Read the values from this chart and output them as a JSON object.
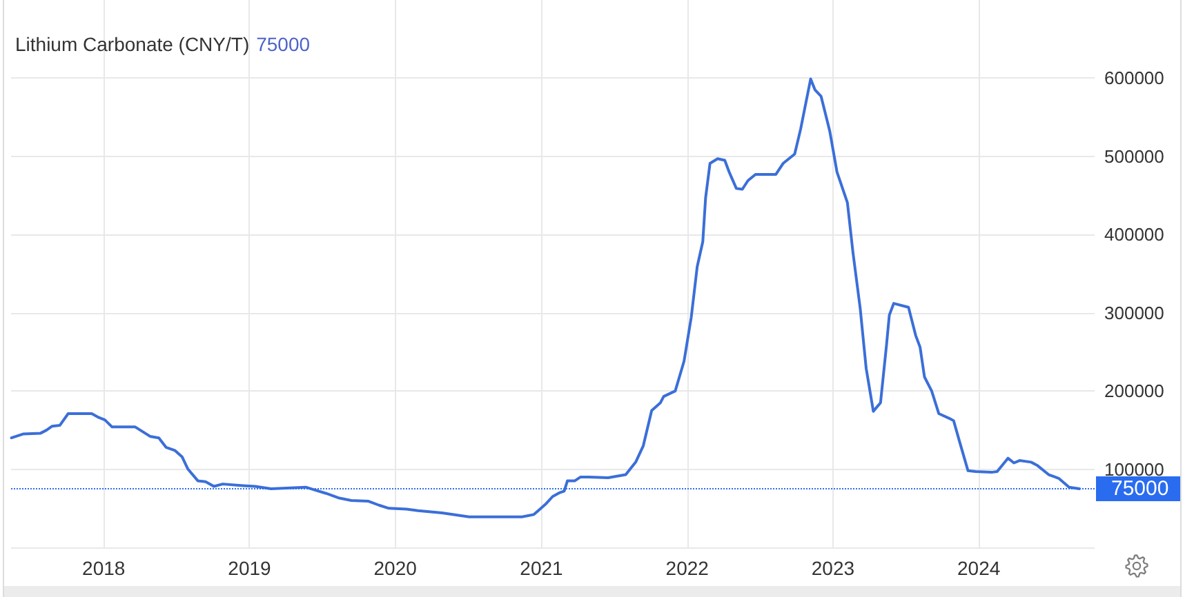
{
  "chart_data": {
    "type": "line",
    "title": "Lithium Carbonate (CNY/T)",
    "subtitle": "75000",
    "x": [
      "2017-05-15",
      "2017-06-13",
      "2017-07-27",
      "2017-08-11",
      "2017-08-25",
      "2017-09-13",
      "2017-10-04",
      "2017-12-02",
      "2017-12-20",
      "2018-01-04",
      "2018-01-22",
      "2018-03-21",
      "2018-04-27",
      "2018-05-19",
      "2018-06-06",
      "2018-06-28",
      "2018-07-16",
      "2018-07-31",
      "2018-08-25",
      "2018-09-13",
      "2018-10-04",
      "2018-10-26",
      "2018-12-16",
      "2019-01-15",
      "2019-02-24",
      "2019-05-22",
      "2019-06-10",
      "2019-07-12",
      "2019-08-14",
      "2019-09-13",
      "2019-10-26",
      "2019-11-21",
      "2019-12-16",
      "2020-01-29",
      "2020-02-27",
      "2020-04-27",
      "2020-07-04",
      "2020-11-13",
      "2020-12-13",
      "2020-12-24",
      "2021-01-11",
      "2021-01-29",
      "2021-02-16",
      "2021-02-27",
      "2021-03-07",
      "2021-03-25",
      "2021-04-09",
      "2021-04-30",
      "2021-06-17",
      "2021-07-31",
      "2021-08-25",
      "2021-09-13",
      "2021-10-04",
      "2021-10-26",
      "2021-11-03",
      "2021-12-02",
      "2021-12-24",
      "2022-01-11",
      "2022-01-26",
      "2022-02-09",
      "2022-02-16",
      "2022-02-27",
      "2022-03-18",
      "2022-04-05",
      "2022-04-16",
      "2022-05-04",
      "2022-05-19",
      "2022-06-02",
      "2022-06-21",
      "2022-08-11",
      "2022-08-29",
      "2022-09-27",
      "2022-10-12",
      "2022-10-26",
      "2022-11-06",
      "2022-11-17",
      "2022-12-02",
      "2022-12-24",
      "2023-01-11",
      "2023-02-06",
      "2023-02-20",
      "2023-03-10",
      "2023-03-25",
      "2023-04-12",
      "2023-04-30",
      "2023-05-15",
      "2023-05-22",
      "2023-06-02",
      "2023-07-09",
      "2023-07-27",
      "2023-08-07",
      "2023-08-18",
      "2023-09-05",
      "2023-09-23",
      "2023-10-19",
      "2023-10-30",
      "2023-11-14",
      "2023-12-05",
      "2023-12-24",
      "2024-02-02",
      "2024-02-16",
      "2024-03-14",
      "2024-03-29",
      "2024-04-12",
      "2024-05-11",
      "2024-05-26",
      "2024-06-24",
      "2024-07-20",
      "2024-08-14",
      "2024-09-09"
    ],
    "series": [
      {
        "color": "#3b6fd8",
        "values": [
          140000,
          145000,
          146000,
          150000,
          155000,
          156000,
          171000,
          171000,
          166000,
          163000,
          154000,
          154000,
          142000,
          140000,
          128000,
          124000,
          116000,
          100000,
          85000,
          84000,
          78000,
          81000,
          79000,
          78000,
          75000,
          77000,
          74000,
          69000,
          63000,
          60000,
          59000,
          54000,
          50000,
          49000,
          47000,
          44000,
          39000,
          39000,
          42000,
          47000,
          55000,
          65000,
          70000,
          72000,
          85000,
          85000,
          90000,
          90000,
          89000,
          93000,
          109000,
          130000,
          175000,
          185000,
          193000,
          200000,
          238000,
          294000,
          359000,
          391000,
          447000,
          491000,
          497000,
          495000,
          480000,
          459000,
          458000,
          469000,
          477000,
          477000,
          491000,
          503000,
          535000,
          571000,
          599000,
          585000,
          577000,
          532000,
          480000,
          441000,
          377000,
          306000,
          229000,
          174000,
          185000,
          259000,
          297000,
          312000,
          307000,
          271000,
          256000,
          218000,
          200000,
          171000,
          165000,
          162000,
          135000,
          98000,
          97000,
          96000,
          97000,
          114000,
          108000,
          111000,
          109000,
          105000,
          93000,
          88000,
          77000,
          75000
        ]
      }
    ],
    "xlim": [
      "2017-05-14",
      "2024-10-17"
    ],
    "xticks": [
      "2018",
      "2019",
      "2020",
      "2021",
      "2022",
      "2023",
      "2024"
    ],
    "ylim": [
      0,
      700000
    ],
    "yticks": [
      {
        "value": 0,
        "label": null
      },
      100000,
      200000,
      300000,
      400000,
      500000,
      600000
    ],
    "grid": true,
    "marker": "none",
    "line_style": "solid",
    "ref_lines": [
      {
        "axis": "y",
        "value": 75000,
        "label": "75000",
        "color": "#2a6cf0",
        "line_style": "dotted"
      }
    ]
  }
}
